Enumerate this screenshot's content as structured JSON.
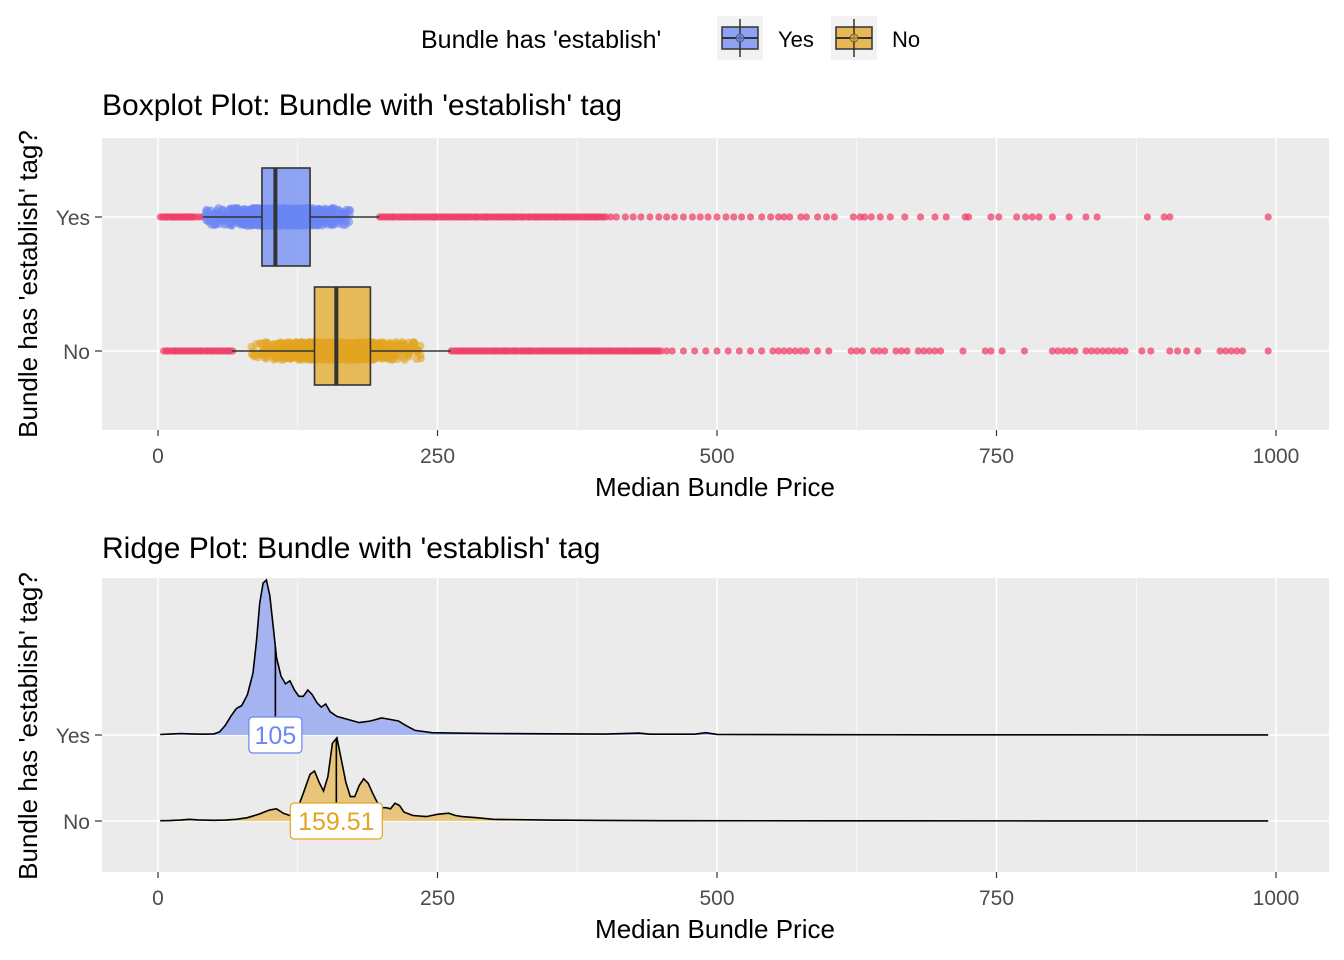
{
  "legend": {
    "title": "Bundle has 'establish'",
    "items": [
      {
        "label": "Yes",
        "color": "#6b86f5"
      },
      {
        "label": "No",
        "color": "#e3a521"
      }
    ]
  },
  "colors": {
    "yes_fill": "#6b86f5",
    "no_fill": "#e3a521",
    "outlier": "#f0406a",
    "panel_bg": "#ebebeb",
    "grid": "#ffffff"
  },
  "chart_data": [
    {
      "type": "boxplot",
      "title": "Boxplot Plot: Bundle with 'establish' tag",
      "xlabel": "Median Bundle Price",
      "ylabel": "Bundle has 'establish' tag?",
      "xlim": [
        -50,
        1045
      ],
      "x_ticks": [
        0,
        250,
        500,
        750,
        1000
      ],
      "categories": [
        "Yes",
        "No"
      ],
      "grid": true,
      "series": [
        {
          "name": "Yes",
          "q1": 93,
          "median": 105,
          "q3": 136,
          "whisker_low": 40,
          "whisker_high": 198,
          "jitter_range": [
            40,
            172
          ],
          "outliers_dense": [
            [
              2,
              32
            ],
            [
              198,
              400
            ]
          ],
          "outliers": [
            5,
            8,
            12,
            15,
            18,
            22,
            25,
            28,
            31,
            34,
            37,
            40,
            405,
            410,
            418,
            425,
            432,
            440,
            448,
            455,
            462,
            470,
            478,
            485,
            492,
            500,
            508,
            515,
            522,
            530,
            540,
            548,
            555,
            560,
            565,
            575,
            580,
            590,
            598,
            605,
            622,
            628,
            632,
            638,
            646,
            655,
            668,
            682,
            695,
            705,
            722,
            725,
            745,
            752,
            768,
            776,
            782,
            788,
            800,
            815,
            830,
            840,
            885,
            900,
            905,
            993
          ]
        },
        {
          "name": "No",
          "q1": 140,
          "median": 159.51,
          "q3": 190,
          "whisker_low": 66,
          "whisker_high": 262,
          "jitter_range": [
            82,
            238
          ],
          "outliers_dense": [
            [
              5,
              66
            ],
            [
              262,
              450
            ]
          ],
          "outliers": [
            455,
            460,
            470,
            480,
            490,
            500,
            510,
            520,
            530,
            540,
            550,
            555,
            560,
            565,
            570,
            575,
            580,
            590,
            600,
            620,
            625,
            630,
            640,
            645,
            650,
            660,
            665,
            670,
            680,
            685,
            690,
            695,
            700,
            720,
            740,
            745,
            755,
            775,
            800,
            805,
            810,
            815,
            820,
            830,
            835,
            840,
            845,
            850,
            855,
            860,
            865,
            880,
            888,
            905,
            912,
            920,
            930,
            950,
            955,
            960,
            965,
            970,
            993
          ]
        }
      ]
    },
    {
      "type": "area",
      "title": "Ridge Plot: Bundle with 'establish' tag",
      "xlabel": "Median Bundle Price",
      "ylabel": "Bundle has 'establish' tag?",
      "xlim": [
        -50,
        1045
      ],
      "x_ticks": [
        0,
        250,
        500,
        750,
        1000
      ],
      "categories": [
        "Yes",
        "No"
      ],
      "grid": true,
      "series": [
        {
          "name": "Yes",
          "median": 105,
          "median_label": "105",
          "density": [
            [
              2,
              0.003
            ],
            [
              10,
              0.006
            ],
            [
              20,
              0.01
            ],
            [
              30,
              0.007
            ],
            [
              40,
              0.005
            ],
            [
              50,
              0.007
            ],
            [
              55,
              0.02
            ],
            [
              60,
              0.06
            ],
            [
              65,
              0.12
            ],
            [
              70,
              0.17
            ],
            [
              75,
              0.19
            ],
            [
              80,
              0.26
            ],
            [
              85,
              0.4
            ],
            [
              88,
              0.6
            ],
            [
              91,
              0.85
            ],
            [
              94,
              0.98
            ],
            [
              97,
              1.0
            ],
            [
              100,
              0.9
            ],
            [
              103,
              0.7
            ],
            [
              106,
              0.5
            ],
            [
              110,
              0.38
            ],
            [
              114,
              0.33
            ],
            [
              118,
              0.35
            ],
            [
              122,
              0.29
            ],
            [
              126,
              0.25
            ],
            [
              130,
              0.25
            ],
            [
              134,
              0.29
            ],
            [
              138,
              0.26
            ],
            [
              142,
              0.21
            ],
            [
              146,
              0.18
            ],
            [
              150,
              0.2
            ],
            [
              154,
              0.15
            ],
            [
              160,
              0.12
            ],
            [
              170,
              0.1
            ],
            [
              180,
              0.08
            ],
            [
              190,
              0.09
            ],
            [
              200,
              0.11
            ],
            [
              208,
              0.1
            ],
            [
              215,
              0.09
            ],
            [
              222,
              0.06
            ],
            [
              230,
              0.03
            ],
            [
              245,
              0.015
            ],
            [
              265,
              0.012
            ],
            [
              300,
              0.01
            ],
            [
              350,
              0.008
            ],
            [
              400,
              0.006
            ],
            [
              430,
              0.012
            ],
            [
              440,
              0.005
            ],
            [
              480,
              0.005
            ],
            [
              490,
              0.015
            ],
            [
              500,
              0.004
            ],
            [
              600,
              0.002
            ],
            [
              700,
              0.001
            ],
            [
              800,
              0.001
            ],
            [
              900,
              0.0005
            ],
            [
              993,
              0.0005
            ]
          ]
        },
        {
          "name": "No",
          "median": 159.51,
          "median_label": "159.51",
          "density": [
            [
              2,
              0.003
            ],
            [
              10,
              0.004
            ],
            [
              20,
              0.008
            ],
            [
              28,
              0.015
            ],
            [
              36,
              0.01
            ],
            [
              50,
              0.006
            ],
            [
              60,
              0.008
            ],
            [
              70,
              0.015
            ],
            [
              80,
              0.03
            ],
            [
              90,
              0.06
            ],
            [
              100,
              0.1
            ],
            [
              106,
              0.11
            ],
            [
              112,
              0.07
            ],
            [
              118,
              0.05
            ],
            [
              124,
              0.09
            ],
            [
              130,
              0.25
            ],
            [
              136,
              0.42
            ],
            [
              140,
              0.45
            ],
            [
              144,
              0.35
            ],
            [
              148,
              0.27
            ],
            [
              152,
              0.4
            ],
            [
              156,
              0.7
            ],
            [
              160,
              0.75
            ],
            [
              164,
              0.55
            ],
            [
              168,
              0.35
            ],
            [
              172,
              0.22
            ],
            [
              176,
              0.22
            ],
            [
              180,
              0.32
            ],
            [
              184,
              0.38
            ],
            [
              188,
              0.34
            ],
            [
              192,
              0.25
            ],
            [
              196,
              0.17
            ],
            [
              200,
              0.12
            ],
            [
              204,
              0.12
            ],
            [
              208,
              0.11
            ],
            [
              212,
              0.16
            ],
            [
              216,
              0.14
            ],
            [
              220,
              0.08
            ],
            [
              228,
              0.05
            ],
            [
              240,
              0.04
            ],
            [
              250,
              0.06
            ],
            [
              260,
              0.07
            ],
            [
              266,
              0.05
            ],
            [
              272,
              0.04
            ],
            [
              285,
              0.03
            ],
            [
              300,
              0.015
            ],
            [
              350,
              0.008
            ],
            [
              400,
              0.005
            ],
            [
              430,
              0.004
            ],
            [
              450,
              0.003
            ],
            [
              600,
              0.002
            ],
            [
              800,
              0.001
            ],
            [
              993,
              0.0005
            ]
          ]
        }
      ]
    }
  ]
}
